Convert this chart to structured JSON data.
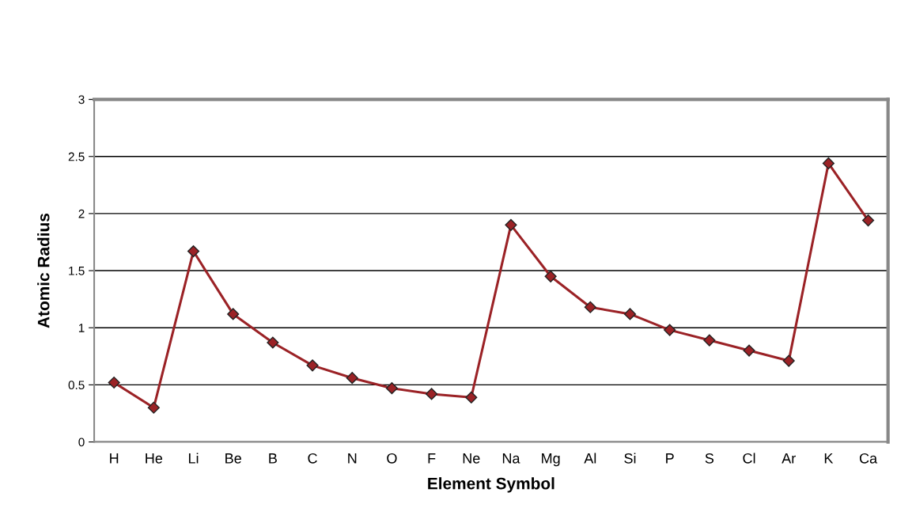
{
  "chart_data": {
    "type": "line",
    "xlabel": "Element Symbol",
    "ylabel": "Atomic Radius",
    "categories": [
      "H",
      "He",
      "Li",
      "Be",
      "B",
      "C",
      "N",
      "O",
      "F",
      "Ne",
      "Na",
      "Mg",
      "Al",
      "Si",
      "P",
      "S",
      "Cl",
      "Ar",
      "K",
      "Ca"
    ],
    "series": [
      {
        "color": "#9b2226",
        "values": [
          0.52,
          0.3,
          1.67,
          1.12,
          0.87,
          0.67,
          0.56,
          0.47,
          0.42,
          0.39,
          1.9,
          1.45,
          1.18,
          1.12,
          0.98,
          0.89,
          0.8,
          0.71,
          2.44,
          1.94
        ]
      }
    ],
    "ylim": [
      0,
      3
    ],
    "yticks": [
      0,
      0.5,
      1,
      1.5,
      2,
      2.5,
      3
    ],
    "grid": "y",
    "marker": "diamond",
    "line_style": "solid",
    "legend": false
  }
}
